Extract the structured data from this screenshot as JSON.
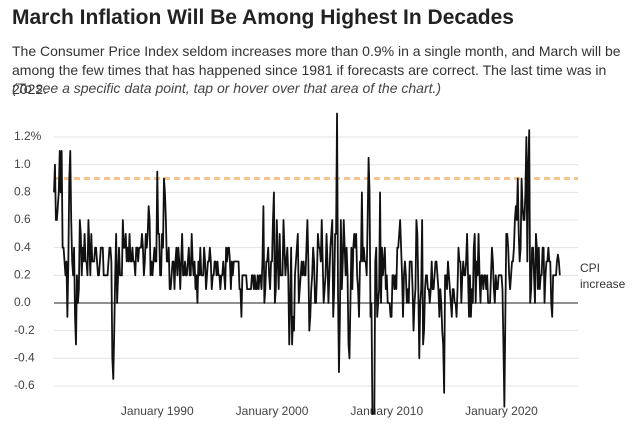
{
  "chart_data": {
    "type": "line",
    "title": "March Inflation Will Be Among Highest In Decades",
    "subtitle": "The Consumer Price Index seldom increases more than 0.9% in a single month, and March will be among the few times that has happened since 1981 if forecasts are correct. The last time was in 2022.",
    "note": "(To see a specific data point, tap or hover over that area of the chart.)",
    "x": [
      "1981-01",
      "1981-02",
      "1981-03",
      "1981-04",
      "1981-05",
      "1981-06",
      "1981-07",
      "1981-08",
      "1981-09",
      "1981-10",
      "1981-11",
      "1981-12",
      "1982-01",
      "1982-02",
      "1982-03",
      "1982-04",
      "1982-05",
      "1982-06",
      "1982-07",
      "1982-08",
      "1982-09",
      "1982-10",
      "1982-11",
      "1982-12",
      "1983-01",
      "1983-02",
      "1983-03",
      "1983-04",
      "1983-05",
      "1983-06",
      "1983-07",
      "1983-08",
      "1983-09",
      "1983-10",
      "1983-11",
      "1983-12",
      "1984-01",
      "1984-02",
      "1984-03",
      "1984-04",
      "1984-05",
      "1984-06",
      "1984-07",
      "1984-08",
      "1984-09",
      "1984-10",
      "1984-11",
      "1984-12",
      "1985-01",
      "1985-02",
      "1985-03",
      "1985-04",
      "1985-05",
      "1985-06",
      "1985-07",
      "1985-08",
      "1985-09",
      "1985-10",
      "1985-11",
      "1985-12",
      "1986-01",
      "1986-02",
      "1986-03",
      "1986-04",
      "1986-05",
      "1986-06",
      "1986-07",
      "1986-08",
      "1986-09",
      "1986-10",
      "1986-11",
      "1986-12",
      "1987-01",
      "1987-02",
      "1987-03",
      "1987-04",
      "1987-05",
      "1987-06",
      "1987-07",
      "1987-08",
      "1987-09",
      "1987-10",
      "1987-11",
      "1987-12",
      "1988-01",
      "1988-02",
      "1988-03",
      "1988-04",
      "1988-05",
      "1988-06",
      "1988-07",
      "1988-08",
      "1988-09",
      "1988-10",
      "1988-11",
      "1988-12",
      "1989-01",
      "1989-02",
      "1989-03",
      "1989-04",
      "1989-05",
      "1989-06",
      "1989-07",
      "1989-08",
      "1989-09",
      "1989-10",
      "1989-11",
      "1989-12",
      "1990-01",
      "1990-02",
      "1990-03",
      "1990-04",
      "1990-05",
      "1990-06",
      "1990-07",
      "1990-08",
      "1990-09",
      "1990-10",
      "1990-11",
      "1990-12",
      "1991-01",
      "1991-02",
      "1991-03",
      "1991-04",
      "1991-05",
      "1991-06",
      "1991-07",
      "1991-08",
      "1991-09",
      "1991-10",
      "1991-11",
      "1991-12",
      "1992-01",
      "1992-02",
      "1992-03",
      "1992-04",
      "1992-05",
      "1992-06",
      "1992-07",
      "1992-08",
      "1992-09",
      "1992-10",
      "1992-11",
      "1992-12",
      "1993-01",
      "1993-02",
      "1993-03",
      "1993-04",
      "1993-05",
      "1993-06",
      "1993-07",
      "1993-08",
      "1993-09",
      "1993-10",
      "1993-11",
      "1993-12",
      "1994-01",
      "1994-02",
      "1994-03",
      "1994-04",
      "1994-05",
      "1994-06",
      "1994-07",
      "1994-08",
      "1994-09",
      "1994-10",
      "1994-11",
      "1994-12",
      "1995-01",
      "1995-02",
      "1995-03",
      "1995-04",
      "1995-05",
      "1995-06",
      "1995-07",
      "1995-08",
      "1995-09",
      "1995-10",
      "1995-11",
      "1995-12",
      "1996-01",
      "1996-02",
      "1996-03",
      "1996-04",
      "1996-05",
      "1996-06",
      "1996-07",
      "1996-08",
      "1996-09",
      "1996-10",
      "1996-11",
      "1996-12",
      "1997-01",
      "1997-02",
      "1997-03",
      "1997-04",
      "1997-05",
      "1997-06",
      "1997-07",
      "1997-08",
      "1997-09",
      "1997-10",
      "1997-11",
      "1997-12",
      "1998-01",
      "1998-02",
      "1998-03",
      "1998-04",
      "1998-05",
      "1998-06",
      "1998-07",
      "1998-08",
      "1998-09",
      "1998-10",
      "1998-11",
      "1998-12",
      "1999-01",
      "1999-02",
      "1999-03",
      "1999-04",
      "1999-05",
      "1999-06",
      "1999-07",
      "1999-08",
      "1999-09",
      "1999-10",
      "1999-11",
      "1999-12",
      "2000-01",
      "2000-02",
      "2000-03",
      "2000-04",
      "2000-05",
      "2000-06",
      "2000-07",
      "2000-08",
      "2000-09",
      "2000-10",
      "2000-11",
      "2000-12",
      "2001-01",
      "2001-02",
      "2001-03",
      "2001-04",
      "2001-05",
      "2001-06",
      "2001-07",
      "2001-08",
      "2001-09",
      "2001-10",
      "2001-11",
      "2001-12",
      "2002-01",
      "2002-02",
      "2002-03",
      "2002-04",
      "2002-05",
      "2002-06",
      "2002-07",
      "2002-08",
      "2002-09",
      "2002-10",
      "2002-11",
      "2002-12",
      "2003-01",
      "2003-02",
      "2003-03",
      "2003-04",
      "2003-05",
      "2003-06",
      "2003-07",
      "2003-08",
      "2003-09",
      "2003-10",
      "2003-11",
      "2003-12",
      "2004-01",
      "2004-02",
      "2004-03",
      "2004-04",
      "2004-05",
      "2004-06",
      "2004-07",
      "2004-08",
      "2004-09",
      "2004-10",
      "2004-11",
      "2004-12",
      "2005-01",
      "2005-02",
      "2005-03",
      "2005-04",
      "2005-05",
      "2005-06",
      "2005-07",
      "2005-08",
      "2005-09",
      "2005-10",
      "2005-11",
      "2005-12",
      "2006-01",
      "2006-02",
      "2006-03",
      "2006-04",
      "2006-05",
      "2006-06",
      "2006-07",
      "2006-08",
      "2006-09",
      "2006-10",
      "2006-11",
      "2006-12",
      "2007-01",
      "2007-02",
      "2007-03",
      "2007-04",
      "2007-05",
      "2007-06",
      "2007-07",
      "2007-08",
      "2007-09",
      "2007-10",
      "2007-11",
      "2007-12",
      "2008-01",
      "2008-02",
      "2008-03",
      "2008-04",
      "2008-05",
      "2008-06",
      "2008-07",
      "2008-08",
      "2008-09",
      "2008-10",
      "2008-11",
      "2008-12",
      "2009-01",
      "2009-02",
      "2009-03",
      "2009-04",
      "2009-05",
      "2009-06",
      "2009-07",
      "2009-08",
      "2009-09",
      "2009-10",
      "2009-11",
      "2009-12",
      "2010-01",
      "2010-02",
      "2010-03",
      "2010-04",
      "2010-05",
      "2010-06",
      "2010-07",
      "2010-08",
      "2010-09",
      "2010-10",
      "2010-11",
      "2010-12",
      "2011-01",
      "2011-02",
      "2011-03",
      "2011-04",
      "2011-05",
      "2011-06",
      "2011-07",
      "2011-08",
      "2011-09",
      "2011-10",
      "2011-11",
      "2011-12",
      "2012-01",
      "2012-02",
      "2012-03",
      "2012-04",
      "2012-05",
      "2012-06",
      "2012-07",
      "2012-08",
      "2012-09",
      "2012-10",
      "2012-11",
      "2012-12",
      "2013-01",
      "2013-02",
      "2013-03",
      "2013-04",
      "2013-05",
      "2013-06",
      "2013-07",
      "2013-08",
      "2013-09",
      "2013-10",
      "2013-11",
      "2013-12",
      "2014-01",
      "2014-02",
      "2014-03",
      "2014-04",
      "2014-05",
      "2014-06",
      "2014-07",
      "2014-08",
      "2014-09",
      "2014-10",
      "2014-11",
      "2014-12",
      "2015-01",
      "2015-02",
      "2015-03",
      "2015-04",
      "2015-05",
      "2015-06",
      "2015-07",
      "2015-08",
      "2015-09",
      "2015-10",
      "2015-11",
      "2015-12",
      "2016-01",
      "2016-02",
      "2016-03",
      "2016-04",
      "2016-05",
      "2016-06",
      "2016-07",
      "2016-08",
      "2016-09",
      "2016-10",
      "2016-11",
      "2016-12",
      "2017-01",
      "2017-02",
      "2017-03",
      "2017-04",
      "2017-05",
      "2017-06",
      "2017-07",
      "2017-08",
      "2017-09",
      "2017-10",
      "2017-11",
      "2017-12",
      "2018-01",
      "2018-02",
      "2018-03",
      "2018-04",
      "2018-05",
      "2018-06",
      "2018-07",
      "2018-08",
      "2018-09",
      "2018-10",
      "2018-11",
      "2018-12",
      "2019-01",
      "2019-02",
      "2019-03",
      "2019-04",
      "2019-05",
      "2019-06",
      "2019-07",
      "2019-08",
      "2019-09",
      "2019-10",
      "2019-11",
      "2019-12",
      "2020-01",
      "2020-02",
      "2020-03",
      "2020-04",
      "2020-05",
      "2020-06",
      "2020-07",
      "2020-08",
      "2020-09",
      "2020-10",
      "2020-11",
      "2020-12",
      "2021-01",
      "2021-02",
      "2021-03",
      "2021-04",
      "2021-05",
      "2021-06",
      "2021-07",
      "2021-08",
      "2021-09",
      "2021-10",
      "2021-11",
      "2021-12",
      "2022-01",
      "2022-02",
      "2022-03",
      "2022-04",
      "2022-05",
      "2022-06",
      "2022-07",
      "2022-08",
      "2022-09",
      "2022-10",
      "2022-11",
      "2022-12",
      "2023-01",
      "2023-02",
      "2023-03",
      "2023-04",
      "2023-05",
      "2023-06",
      "2023-07",
      "2023-08",
      "2023-09",
      "2023-10",
      "2023-11",
      "2023-12",
      "2024-01",
      "2024-02",
      "2024-03",
      "2024-04",
      "2024-05",
      "2024-06",
      "2024-07",
      "2024-08",
      "2024-09",
      "2024-10",
      "2024-11",
      "2024-12",
      "2025-01",
      "2025-02"
    ],
    "series": [
      {
        "name": "CPI increase",
        "color": "#111111",
        "values": [
          0.8,
          1.0,
          0.6,
          0.6,
          0.7,
          0.8,
          1.1,
          0.8,
          1.1,
          0.4,
          0.4,
          0.3,
          0.2,
          0.3,
          -0.1,
          0.3,
          0.9,
          1.1,
          0.6,
          0.3,
          0.2,
          0.4,
          -0.1,
          -0.3,
          0.2,
          0.0,
          0.1,
          0.6,
          0.5,
          0.2,
          0.4,
          0.3,
          0.5,
          0.3,
          0.3,
          0.2,
          0.6,
          0.4,
          0.2,
          0.5,
          0.3,
          0.3,
          0.3,
          0.4,
          0.4,
          0.3,
          0.2,
          0.2,
          0.3,
          0.4,
          0.4,
          0.4,
          0.2,
          0.2,
          0.2,
          0.2,
          0.2,
          0.3,
          0.4,
          0.4,
          0.3,
          -0.4,
          -0.55,
          -0.2,
          0.2,
          0.5,
          0.0,
          0.2,
          0.4,
          0.2,
          0.2,
          0.2,
          0.6,
          0.4,
          0.4,
          0.5,
          0.3,
          0.4,
          0.3,
          0.5,
          0.3,
          0.3,
          0.4,
          0.3,
          0.3,
          0.2,
          0.4,
          0.4,
          0.3,
          0.4,
          0.4,
          0.4,
          0.5,
          0.4,
          0.2,
          0.3,
          0.5,
          0.4,
          0.5,
          0.7,
          0.6,
          0.2,
          0.3,
          0.2,
          0.3,
          0.4,
          0.3,
          0.3,
          0.95,
          0.5,
          0.5,
          0.2,
          0.2,
          0.5,
          0.4,
          0.9,
          0.8,
          0.6,
          0.3,
          0.3,
          0.4,
          0.1,
          0.1,
          0.2,
          0.3,
          0.3,
          0.1,
          0.3,
          0.4,
          0.2,
          0.4,
          0.3,
          0.1,
          0.3,
          0.5,
          0.2,
          0.2,
          0.3,
          0.2,
          0.2,
          0.3,
          0.4,
          0.2,
          0.2,
          0.5,
          0.3,
          0.2,
          0.3,
          0.1,
          0.2,
          0.0,
          0.3,
          0.2,
          0.4,
          0.2,
          0.2,
          0.2,
          0.4,
          0.3,
          0.1,
          0.2,
          0.3,
          0.3,
          0.4,
          0.3,
          0.1,
          0.2,
          0.2,
          0.3,
          0.3,
          0.2,
          0.3,
          0.2,
          0.2,
          0.1,
          0.2,
          0.2,
          0.3,
          0.2,
          0.1,
          0.4,
          0.3,
          0.4,
          0.4,
          0.3,
          0.1,
          0.3,
          0.2,
          0.3,
          0.3,
          0.3,
          0.3,
          0.3,
          0.3,
          0.1,
          0.1,
          -0.1,
          0.2,
          0.2,
          0.2,
          0.2,
          0.2,
          0.1,
          0.1,
          0.1,
          0.1,
          0.1,
          0.2,
          0.2,
          0.1,
          0.2,
          0.1,
          0.1,
          0.2,
          0.1,
          0.2,
          0.2,
          0.1,
          0.3,
          0.7,
          0.0,
          0.1,
          0.3,
          0.3,
          0.4,
          0.2,
          0.1,
          0.3,
          0.3,
          0.6,
          0.8,
          0.0,
          0.1,
          0.6,
          0.3,
          0.1,
          0.5,
          0.2,
          0.2,
          0.2,
          0.6,
          0.4,
          0.2,
          0.3,
          0.4,
          0.2,
          -0.3,
          0.0,
          0.4,
          -0.3,
          -0.1,
          -0.2,
          0.2,
          0.3,
          0.4,
          0.5,
          0.0,
          0.1,
          0.2,
          0.3,
          0.2,
          0.3,
          0.2,
          0.2,
          0.4,
          0.6,
          0.3,
          -0.2,
          -0.1,
          0.1,
          0.2,
          0.4,
          0.3,
          0.0,
          0.0,
          0.2,
          0.5,
          0.4,
          0.4,
          0.3,
          0.6,
          0.3,
          0.0,
          0.1,
          0.2,
          0.5,
          0.3,
          0.0,
          0.2,
          0.4,
          0.5,
          0.6,
          -0.1,
          0.1,
          0.5,
          0.5,
          1.37,
          0.1,
          -0.5,
          -0.1,
          0.6,
          0.1,
          0.3,
          0.6,
          0.4,
          0.2,
          0.4,
          0.2,
          -0.3,
          -0.4,
          0.0,
          0.4,
          0.1,
          0.4,
          0.5,
          0.4,
          0.5,
          0.2,
          0.1,
          -0.1,
          0.3,
          0.3,
          0.8,
          0.3,
          0.4,
          0.3,
          0.3,
          0.2,
          0.6,
          1.05,
          0.8,
          -0.1,
          0.0,
          -0.8,
          -0.8,
          -0.8,
          0.3,
          0.4,
          -0.1,
          0.0,
          0.1,
          0.8,
          0.0,
          0.4,
          0.2,
          0.3,
          0.4,
          0.1,
          0.2,
          0.0,
          0.0,
          0.0,
          -0.1,
          -0.1,
          0.2,
          0.2,
          0.1,
          0.2,
          0.1,
          0.4,
          0.4,
          0.5,
          0.6,
          0.4,
          0.2,
          -0.1,
          0.2,
          0.3,
          0.2,
          0.0,
          0.1,
          0.0,
          0.3,
          0.3,
          0.3,
          0.1,
          -0.2,
          0.0,
          0.1,
          0.6,
          0.5,
          0.1,
          -0.4,
          0.0,
          0.1,
          0.6,
          -0.3,
          -0.2,
          0.1,
          0.2,
          0.2,
          0.1,
          0.1,
          0.0,
          0.1,
          0.3,
          0.1,
          0.1,
          0.2,
          0.3,
          0.3,
          0.2,
          0.1,
          -0.1,
          0.1,
          0.0,
          -0.2,
          -0.3,
          -0.65,
          0.2,
          0.2,
          0.1,
          0.3,
          0.2,
          0.1,
          0.0,
          -0.1,
          0.1,
          0.1,
          0.0,
          0.0,
          -0.1,
          0.1,
          0.4,
          0.3,
          0.3,
          0.0,
          0.2,
          0.3,
          0.2,
          0.2,
          0.3,
          0.5,
          0.2,
          -0.1,
          0.2,
          -0.1,
          0.1,
          0.0,
          0.4,
          0.5,
          0.0,
          0.3,
          0.2,
          0.5,
          0.2,
          0.0,
          0.2,
          0.2,
          0.1,
          0.2,
          0.2,
          0.1,
          0.2,
          0.0,
          0.0,
          0.0,
          0.2,
          0.4,
          0.3,
          0.1,
          0.0,
          0.2,
          0.1,
          0.1,
          0.2,
          0.2,
          0.2,
          0.2,
          0.1,
          -0.3,
          -0.75,
          -0.1,
          0.5,
          0.5,
          0.4,
          0.2,
          0.1,
          0.2,
          0.3,
          0.3,
          0.4,
          0.6,
          0.7,
          0.6,
          0.9,
          0.5,
          0.3,
          0.4,
          0.9,
          0.7,
          0.6,
          0.6,
          0.8,
          1.2,
          0.3,
          1.0,
          1.25,
          0.0,
          0.1,
          0.4,
          0.4,
          0.2,
          0.0,
          0.5,
          0.4,
          0.1,
          0.4,
          0.1,
          0.2,
          0.2,
          0.4,
          0.4,
          0.0,
          0.2,
          0.3,
          0.3,
          0.4,
          0.3,
          0.3,
          0.0,
          -0.1,
          0.2,
          0.2,
          0.2,
          0.2,
          0.3,
          0.35,
          0.3,
          0.2
        ]
      }
    ],
    "xlim": [
      "1981-01",
      "2026-09"
    ],
    "xticks": [
      {
        "value": "1990-01",
        "label": "January 1990"
      },
      {
        "value": "2000-01",
        "label": "January 2000"
      },
      {
        "value": "2010-01",
        "label": "January 2010"
      },
      {
        "value": "2020-01",
        "label": "January 2020"
      }
    ],
    "ylim": [
      -0.8,
      1.4
    ],
    "yticks": [
      -0.6,
      -0.4,
      -0.2,
      {
        "value": 0,
        "label": "0.0"
      },
      0.2,
      0.4,
      0.6,
      0.8,
      {
        "value": 1,
        "label": "1.0"
      },
      {
        "value": 1.2,
        "label": "1.2%"
      }
    ],
    "grid": true,
    "reference_line": {
      "value": 0.9,
      "color": "#f7c48e"
    }
  }
}
